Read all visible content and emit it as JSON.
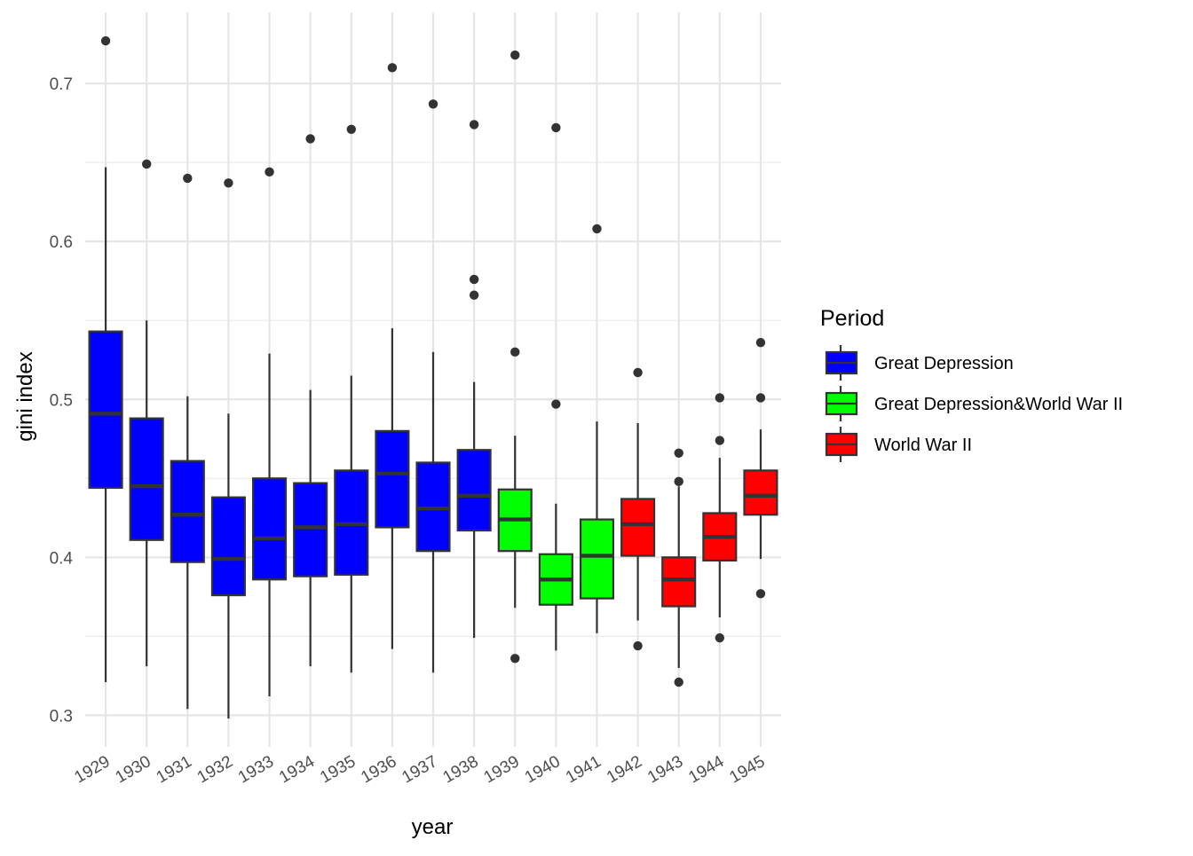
{
  "chart_data": {
    "type": "boxplot",
    "xlabel": "year",
    "ylabel": "gini index",
    "ylim": [
      0.28,
      0.745
    ],
    "y_ticks": [
      0.3,
      0.4,
      0.5,
      0.6,
      0.7
    ],
    "y_tick_labels": [
      "0.3",
      "0.4",
      "0.5",
      "0.6",
      "0.7"
    ],
    "grid": true,
    "legend": {
      "title": "Period",
      "placement": "right",
      "entries": [
        {
          "label": "Great Depression",
          "color": "#0000FF"
        },
        {
          "label": "Great Depression&World War II",
          "color": "#00FF00"
        },
        {
          "label": "World War II",
          "color": "#FF0000"
        }
      ]
    },
    "categories": [
      "1929",
      "1930",
      "1931",
      "1932",
      "1933",
      "1934",
      "1935",
      "1936",
      "1937",
      "1938",
      "1939",
      "1940",
      "1941",
      "1942",
      "1943",
      "1944",
      "1945"
    ],
    "boxes": [
      {
        "year": "1929",
        "period": "Great Depression",
        "whisker_low": 0.321,
        "q1": 0.444,
        "median": 0.491,
        "q3": 0.543,
        "whisker_high": 0.647,
        "outliers": [
          0.727
        ]
      },
      {
        "year": "1930",
        "period": "Great Depression",
        "whisker_low": 0.331,
        "q1": 0.411,
        "median": 0.445,
        "q3": 0.488,
        "whisker_high": 0.55,
        "outliers": [
          0.649
        ]
      },
      {
        "year": "1931",
        "period": "Great Depression",
        "whisker_low": 0.304,
        "q1": 0.397,
        "median": 0.427,
        "q3": 0.461,
        "whisker_high": 0.502,
        "outliers": [
          0.64
        ]
      },
      {
        "year": "1932",
        "period": "Great Depression",
        "whisker_low": 0.298,
        "q1": 0.376,
        "median": 0.399,
        "q3": 0.438,
        "whisker_high": 0.491,
        "outliers": [
          0.637
        ]
      },
      {
        "year": "1933",
        "period": "Great Depression",
        "whisker_low": 0.312,
        "q1": 0.386,
        "median": 0.412,
        "q3": 0.45,
        "whisker_high": 0.529,
        "outliers": [
          0.644
        ]
      },
      {
        "year": "1934",
        "period": "Great Depression",
        "whisker_low": 0.331,
        "q1": 0.388,
        "median": 0.419,
        "q3": 0.447,
        "whisker_high": 0.506,
        "outliers": [
          0.665
        ]
      },
      {
        "year": "1935",
        "period": "Great Depression",
        "whisker_low": 0.327,
        "q1": 0.389,
        "median": 0.421,
        "q3": 0.455,
        "whisker_high": 0.515,
        "outliers": [
          0.671
        ]
      },
      {
        "year": "1936",
        "period": "Great Depression",
        "whisker_low": 0.342,
        "q1": 0.419,
        "median": 0.453,
        "q3": 0.48,
        "whisker_high": 0.545,
        "outliers": [
          0.71
        ]
      },
      {
        "year": "1937",
        "period": "Great Depression",
        "whisker_low": 0.327,
        "q1": 0.404,
        "median": 0.431,
        "q3": 0.46,
        "whisker_high": 0.53,
        "outliers": [
          0.687
        ]
      },
      {
        "year": "1938",
        "period": "Great Depression",
        "whisker_low": 0.349,
        "q1": 0.417,
        "median": 0.439,
        "q3": 0.468,
        "whisker_high": 0.511,
        "outliers": [
          0.566,
          0.576,
          0.674
        ]
      },
      {
        "year": "1939",
        "period": "Great Depression&World War II",
        "whisker_low": 0.368,
        "q1": 0.404,
        "median": 0.424,
        "q3": 0.443,
        "whisker_high": 0.477,
        "outliers": [
          0.336,
          0.53,
          0.718
        ]
      },
      {
        "year": "1940",
        "period": "Great Depression&World War II",
        "whisker_low": 0.341,
        "q1": 0.37,
        "median": 0.386,
        "q3": 0.402,
        "whisker_high": 0.434,
        "outliers": [
          0.497,
          0.672
        ]
      },
      {
        "year": "1941",
        "period": "Great Depression&World War II",
        "whisker_low": 0.352,
        "q1": 0.374,
        "median": 0.401,
        "q3": 0.424,
        "whisker_high": 0.486,
        "outliers": [
          0.608
        ]
      },
      {
        "year": "1942",
        "period": "World War II",
        "whisker_low": 0.36,
        "q1": 0.401,
        "median": 0.421,
        "q3": 0.437,
        "whisker_high": 0.485,
        "outliers": [
          0.344,
          0.517
        ]
      },
      {
        "year": "1943",
        "period": "World War II",
        "whisker_low": 0.33,
        "q1": 0.369,
        "median": 0.386,
        "q3": 0.4,
        "whisker_high": 0.445,
        "outliers": [
          0.321,
          0.448,
          0.466
        ]
      },
      {
        "year": "1944",
        "period": "World War II",
        "whisker_low": 0.362,
        "q1": 0.398,
        "median": 0.413,
        "q3": 0.428,
        "whisker_high": 0.463,
        "outliers": [
          0.349,
          0.474,
          0.501
        ]
      },
      {
        "year": "1945",
        "period": "World War II",
        "whisker_low": 0.399,
        "q1": 0.427,
        "median": 0.439,
        "q3": 0.455,
        "whisker_high": 0.481,
        "outliers": [
          0.377,
          0.501,
          0.536
        ]
      }
    ]
  }
}
